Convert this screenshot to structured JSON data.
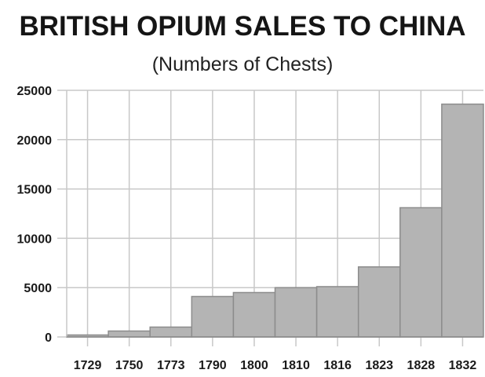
{
  "header": {
    "title": "BRITISH OPIUM SALES TO CHINA",
    "subtitle": "(Numbers of Chests)"
  },
  "colors": {
    "bar_fill": "#b4b4b4",
    "bar_stroke": "#8c8c8c",
    "grid": "#c8c8c8",
    "text": "#1a1a1a"
  },
  "chart_data": {
    "type": "bar",
    "title": "BRITISH OPIUM SALES TO CHINA",
    "subtitle": "(Numbers of Chests)",
    "xlabel": "",
    "ylabel": "",
    "categories": [
      "1729",
      "1750",
      "1773",
      "1790",
      "1800",
      "1810",
      "1816",
      "1823",
      "1828",
      "1832"
    ],
    "values": [
      200,
      600,
      1000,
      4100,
      4500,
      5000,
      5100,
      7100,
      13100,
      23600
    ],
    "ylim": [
      0,
      25000
    ],
    "yticks": [
      0,
      5000,
      10000,
      15000,
      20000,
      25000
    ],
    "ytick_labels": [
      "0",
      "5000",
      "10000",
      "15000",
      "20000",
      "25000"
    ],
    "grid": true,
    "legend": null,
    "bar_width": "full (bars touch, histogram style)"
  }
}
